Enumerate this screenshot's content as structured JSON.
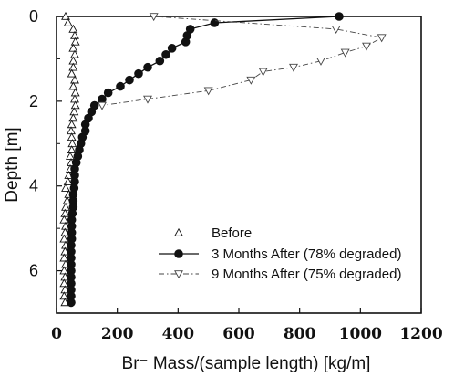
{
  "chart_data": {
    "type": "scatter",
    "xlabel": "Br⁻ Mass/(sample   length)  [kg/m]",
    "ylabel": "Depth [m]",
    "xlim": [
      0,
      1200
    ],
    "ylim": [
      7,
      0
    ],
    "x_ticks": [
      "0",
      "200",
      "400",
      "600",
      "800",
      "1000",
      "1200"
    ],
    "y_ticks": [
      "0",
      "2",
      "4",
      "6"
    ],
    "x_tick_values": [
      0,
      200,
      400,
      600,
      800,
      1000,
      1200
    ],
    "y_tick_values": [
      0,
      2,
      4,
      6
    ],
    "grid": false,
    "legend_position": "bottom-right",
    "series": [
      {
        "name": "Before",
        "marker": "triangle-up-open",
        "line": false,
        "color": "#111111",
        "points": [
          [
            30,
            0.0
          ],
          [
            38,
            0.15
          ],
          [
            55,
            0.3
          ],
          [
            60,
            0.45
          ],
          [
            62,
            0.6
          ],
          [
            55,
            0.75
          ],
          [
            60,
            0.9
          ],
          [
            55,
            1.05
          ],
          [
            55,
            1.2
          ],
          [
            50,
            1.35
          ],
          [
            60,
            1.5
          ],
          [
            55,
            1.65
          ],
          [
            62,
            1.8
          ],
          [
            60,
            1.95
          ],
          [
            62,
            2.1
          ],
          [
            58,
            2.25
          ],
          [
            55,
            2.4
          ],
          [
            50,
            2.55
          ],
          [
            48,
            2.7
          ],
          [
            50,
            2.85
          ],
          [
            52,
            3.0
          ],
          [
            50,
            3.15
          ],
          [
            45,
            3.3
          ],
          [
            48,
            3.45
          ],
          [
            45,
            3.6
          ],
          [
            40,
            3.75
          ],
          [
            38,
            3.9
          ],
          [
            30,
            4.05
          ],
          [
            40,
            4.2
          ],
          [
            35,
            4.35
          ],
          [
            30,
            4.5
          ],
          [
            28,
            4.65
          ],
          [
            25,
            4.8
          ],
          [
            30,
            4.95
          ],
          [
            28,
            5.1
          ],
          [
            25,
            5.25
          ],
          [
            30,
            5.4
          ],
          [
            28,
            5.55
          ],
          [
            25,
            5.7
          ],
          [
            30,
            5.85
          ],
          [
            25,
            6.0
          ],
          [
            28,
            6.15
          ],
          [
            25,
            6.3
          ],
          [
            28,
            6.45
          ],
          [
            25,
            6.6
          ],
          [
            28,
            6.75
          ]
        ]
      },
      {
        "name": "3 Months After (78% degraded)",
        "marker": "circle-filled",
        "line": true,
        "line_style": "solid",
        "color": "#111111",
        "points": [
          [
            930,
            0.0
          ],
          [
            520,
            0.15
          ],
          [
            440,
            0.3
          ],
          [
            430,
            0.45
          ],
          [
            425,
            0.6
          ],
          [
            380,
            0.75
          ],
          [
            360,
            0.9
          ],
          [
            340,
            1.05
          ],
          [
            300,
            1.2
          ],
          [
            270,
            1.35
          ],
          [
            240,
            1.5
          ],
          [
            210,
            1.65
          ],
          [
            170,
            1.8
          ],
          [
            150,
            1.95
          ],
          [
            125,
            2.1
          ],
          [
            115,
            2.25
          ],
          [
            105,
            2.4
          ],
          [
            95,
            2.55
          ],
          [
            95,
            2.7
          ],
          [
            85,
            2.85
          ],
          [
            80,
            3.0
          ],
          [
            75,
            3.15
          ],
          [
            70,
            3.3
          ],
          [
            65,
            3.45
          ],
          [
            60,
            3.6
          ],
          [
            60,
            3.75
          ],
          [
            60,
            3.9
          ],
          [
            58,
            4.05
          ],
          [
            55,
            4.2
          ],
          [
            55,
            4.35
          ],
          [
            55,
            4.5
          ],
          [
            52,
            4.65
          ],
          [
            50,
            4.8
          ],
          [
            50,
            4.95
          ],
          [
            50,
            5.1
          ],
          [
            50,
            5.25
          ],
          [
            48,
            5.4
          ],
          [
            48,
            5.55
          ],
          [
            48,
            5.7
          ],
          [
            48,
            5.85
          ],
          [
            48,
            6.0
          ],
          [
            48,
            6.15
          ],
          [
            48,
            6.3
          ],
          [
            48,
            6.45
          ],
          [
            48,
            6.6
          ],
          [
            48,
            6.75
          ]
        ]
      },
      {
        "name": "9 Months After (75% degraded)",
        "marker": "triangle-down-open",
        "line": true,
        "line_style": "dash-dot",
        "color": "#444444",
        "points": [
          [
            320,
            0.0
          ],
          [
            920,
            0.3
          ],
          [
            1070,
            0.5
          ],
          [
            1020,
            0.7
          ],
          [
            950,
            0.85
          ],
          [
            870,
            1.05
          ],
          [
            780,
            1.2
          ],
          [
            680,
            1.3
          ],
          [
            640,
            1.5
          ],
          [
            500,
            1.75
          ],
          [
            300,
            1.95
          ],
          [
            150,
            2.1
          ]
        ]
      }
    ]
  }
}
